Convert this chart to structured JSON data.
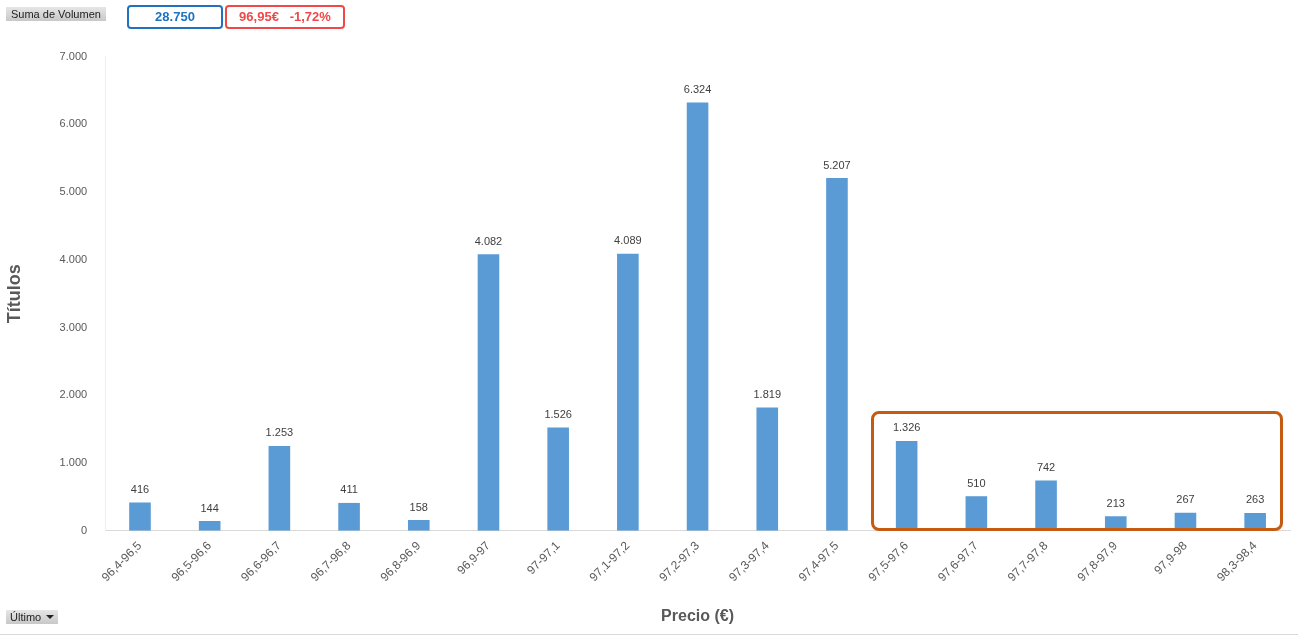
{
  "chart_data": {
    "type": "bar",
    "xlabel": "Precio (€)",
    "ylabel": "Títulos",
    "categories": [
      "96,4-96,5",
      "96,5-96,6",
      "96,6-96,7",
      "96,7-96,8",
      "96,8-96,9",
      "96,9-97",
      "97-97,1",
      "97,1-97,2",
      "97,2-97,3",
      "97,3-97,4",
      "97,4-97,5",
      "97,5-97,6",
      "97,6-97,7",
      "97,7-97,8",
      "97,8-97,9",
      "97,9-98",
      "98,3-98,4"
    ],
    "values": [
      416,
      144,
      1253,
      411,
      158,
      4082,
      1526,
      4089,
      6324,
      1819,
      5207,
      1326,
      510,
      742,
      213,
      267,
      263
    ],
    "value_labels": [
      "416",
      "144",
      "1.253",
      "411",
      "158",
      "4.082",
      "1.526",
      "4.089",
      "6.324",
      "1.819",
      "5.207",
      "1.326",
      "510",
      "742",
      "213",
      "267",
      "263"
    ],
    "color": "#5b9bd5",
    "ylim": [
      0,
      7000
    ],
    "yticks": [
      0,
      {
        "value": 1000,
        "label": "1.000"
      },
      {
        "value": 2000,
        "label": "2.000"
      },
      {
        "value": 3000,
        "label": "3.000"
      },
      {
        "value": 4000,
        "label": "4.000"
      },
      {
        "value": 5000,
        "label": "5.000"
      },
      {
        "value": 6000,
        "label": "6.000"
      },
      {
        "value": 7000,
        "label": "7.000"
      }
    ],
    "grid": false,
    "legend": false,
    "annotations": [
      "Suma de Volumen",
      "28.750",
      "96,95€   -1,72%",
      "Último"
    ]
  }
}
